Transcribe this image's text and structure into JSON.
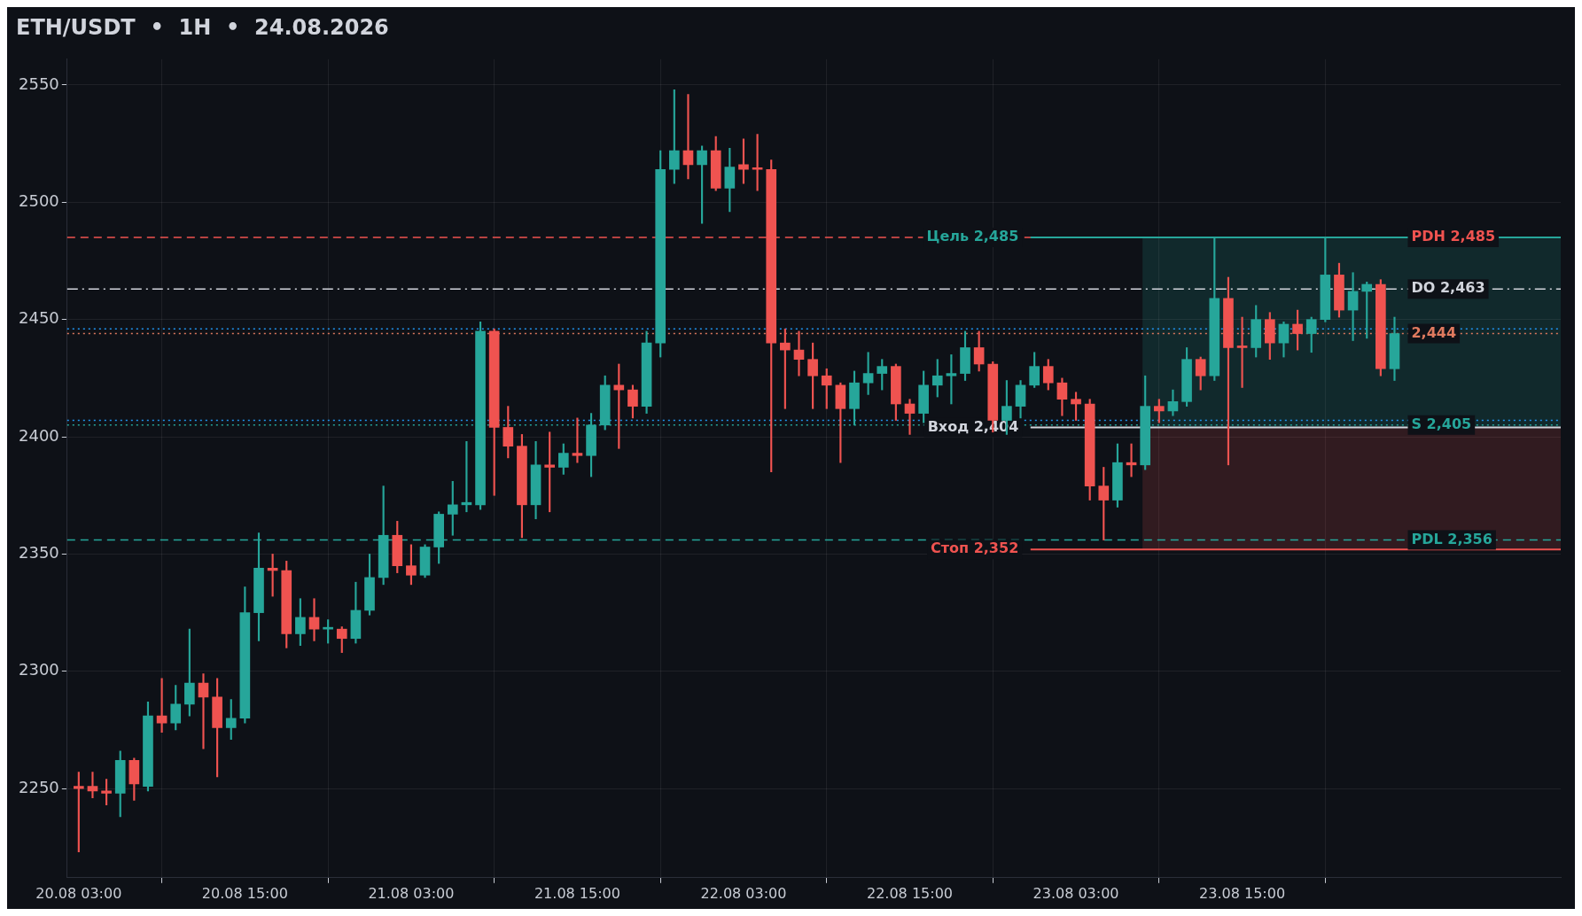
{
  "chart_data": {
    "type": "candlestick",
    "title": "ETH/USDT  •  1H  •  24.08.2026",
    "x": [
      "2026-08-20T03:00",
      "2026-08-20T04:00",
      "2026-08-20T05:00",
      "2026-08-20T06:00",
      "2026-08-20T07:00",
      "2026-08-20T08:00",
      "2026-08-20T09:00",
      "2026-08-20T10:00",
      "2026-08-20T11:00",
      "2026-08-20T12:00",
      "2026-08-20T13:00",
      "2026-08-20T14:00",
      "2026-08-20T15:00",
      "2026-08-20T16:00",
      "2026-08-20T17:00",
      "2026-08-20T18:00",
      "2026-08-20T19:00",
      "2026-08-20T20:00",
      "2026-08-20T21:00",
      "2026-08-20T22:00",
      "2026-08-20T23:00",
      "2026-08-21T00:00",
      "2026-08-21T01:00",
      "2026-08-21T02:00",
      "2026-08-21T03:00",
      "2026-08-21T04:00",
      "2026-08-21T05:00",
      "2026-08-21T06:00",
      "2026-08-21T07:00",
      "2026-08-21T08:00",
      "2026-08-21T09:00",
      "2026-08-21T10:00",
      "2026-08-21T11:00",
      "2026-08-21T12:00",
      "2026-08-21T13:00",
      "2026-08-21T14:00",
      "2026-08-21T15:00",
      "2026-08-21T16:00",
      "2026-08-21T17:00",
      "2026-08-21T18:00",
      "2026-08-21T19:00",
      "2026-08-21T20:00",
      "2026-08-21T21:00",
      "2026-08-21T22:00",
      "2026-08-21T23:00",
      "2026-08-22T00:00",
      "2026-08-22T01:00",
      "2026-08-22T02:00",
      "2026-08-22T03:00",
      "2026-08-22T04:00",
      "2026-08-22T05:00",
      "2026-08-22T06:00",
      "2026-08-22T07:00",
      "2026-08-22T08:00",
      "2026-08-22T09:00",
      "2026-08-22T10:00",
      "2026-08-22T11:00",
      "2026-08-22T12:00",
      "2026-08-22T13:00",
      "2026-08-22T14:00",
      "2026-08-22T15:00",
      "2026-08-22T16:00",
      "2026-08-22T17:00",
      "2026-08-22T18:00",
      "2026-08-22T19:00",
      "2026-08-22T20:00",
      "2026-08-22T21:00",
      "2026-08-22T22:00",
      "2026-08-22T23:00",
      "2026-08-23T00:00",
      "2026-08-23T01:00",
      "2026-08-23T02:00",
      "2026-08-23T03:00",
      "2026-08-23T04:00",
      "2026-08-23T05:00",
      "2026-08-23T06:00",
      "2026-08-23T07:00",
      "2026-08-23T08:00",
      "2026-08-23T09:00",
      "2026-08-23T10:00",
      "2026-08-23T11:00",
      "2026-08-23T12:00",
      "2026-08-23T13:00",
      "2026-08-23T14:00",
      "2026-08-23T15:00",
      "2026-08-23T16:00",
      "2026-08-23T17:00",
      "2026-08-23T18:00",
      "2026-08-23T19:00",
      "2026-08-23T20:00",
      "2026-08-23T21:00",
      "2026-08-23T22:00",
      "2026-08-23T23:00",
      "2026-08-24T00:00",
      "2026-08-24T01:00",
      "2026-08-24T02:00"
    ],
    "ohlc": [
      [
        2251,
        2257,
        2223,
        2250
      ],
      [
        2251,
        2257,
        2246,
        2249
      ],
      [
        2249,
        2254,
        2243,
        2248
      ],
      [
        2248,
        2266,
        2238,
        2262
      ],
      [
        2262,
        2263,
        2245,
        2252
      ],
      [
        2251,
        2287,
        2249,
        2281
      ],
      [
        2281,
        2297,
        2274,
        2278
      ],
      [
        2278,
        2294,
        2275,
        2286
      ],
      [
        2286,
        2318,
        2281,
        2295
      ],
      [
        2295,
        2299,
        2267,
        2289
      ],
      [
        2289,
        2297,
        2255,
        2276
      ],
      [
        2276,
        2288,
        2271,
        2280
      ],
      [
        2280,
        2336,
        2278,
        2325
      ],
      [
        2325,
        2359,
        2313,
        2344
      ],
      [
        2344,
        2350,
        2332,
        2343
      ],
      [
        2343,
        2347,
        2310,
        2316
      ],
      [
        2316,
        2331,
        2311,
        2323
      ],
      [
        2323,
        2331,
        2313,
        2318
      ],
      [
        2318,
        2322,
        2312,
        2318
      ],
      [
        2318,
        2319,
        2308,
        2314
      ],
      [
        2314,
        2338,
        2312,
        2326
      ],
      [
        2326,
        2350,
        2324,
        2340
      ],
      [
        2340,
        2379,
        2337,
        2358
      ],
      [
        2358,
        2364,
        2342,
        2345
      ],
      [
        2345,
        2354,
        2337,
        2341
      ],
      [
        2341,
        2354,
        2340,
        2353
      ],
      [
        2353,
        2368,
        2346,
        2367
      ],
      [
        2367,
        2381,
        2358,
        2371
      ],
      [
        2371,
        2398,
        2368,
        2372
      ],
      [
        2371,
        2449,
        2369,
        2445
      ],
      [
        2445,
        2446,
        2375,
        2404
      ],
      [
        2404,
        2413,
        2391,
        2396
      ],
      [
        2396,
        2401,
        2357,
        2371
      ],
      [
        2371,
        2398,
        2365,
        2388
      ],
      [
        2388,
        2402,
        2368,
        2387
      ],
      [
        2387,
        2397,
        2384,
        2393
      ],
      [
        2393,
        2408,
        2389,
        2392
      ],
      [
        2392,
        2410,
        2383,
        2405
      ],
      [
        2405,
        2426,
        2403,
        2422
      ],
      [
        2422,
        2431,
        2395,
        2420
      ],
      [
        2420,
        2422,
        2408,
        2413
      ],
      [
        2413,
        2445,
        2410,
        2440
      ],
      [
        2440,
        2522,
        2434,
        2514
      ],
      [
        2514,
        2548,
        2508,
        2522
      ],
      [
        2522,
        2546,
        2510,
        2516
      ],
      [
        2516,
        2524,
        2491,
        2522
      ],
      [
        2522,
        2528,
        2505,
        2506
      ],
      [
        2506,
        2523,
        2496,
        2515
      ],
      [
        2516,
        2527,
        2508,
        2514
      ],
      [
        2514,
        2529,
        2505,
        2514
      ],
      [
        2514,
        2518,
        2385,
        2440
      ],
      [
        2440,
        2446,
        2412,
        2437
      ],
      [
        2437,
        2445,
        2426,
        2433
      ],
      [
        2433,
        2440,
        2412,
        2426
      ],
      [
        2426,
        2429,
        2412,
        2422
      ],
      [
        2422,
        2423,
        2389,
        2412
      ],
      [
        2412,
        2428,
        2405,
        2423
      ],
      [
        2423,
        2436,
        2418,
        2427
      ],
      [
        2427,
        2433,
        2420,
        2430
      ],
      [
        2430,
        2431,
        2407,
        2414
      ],
      [
        2414,
        2416,
        2401,
        2410
      ],
      [
        2410,
        2428,
        2406,
        2422
      ],
      [
        2422,
        2433,
        2417,
        2426
      ],
      [
        2426,
        2435,
        2414,
        2427
      ],
      [
        2427,
        2445,
        2424,
        2438
      ],
      [
        2438,
        2445,
        2428,
        2431
      ],
      [
        2431,
        2432,
        2402,
        2407
      ],
      [
        2407,
        2424,
        2401,
        2413
      ],
      [
        2413,
        2424,
        2408,
        2422
      ],
      [
        2422,
        2436,
        2421,
        2430
      ],
      [
        2430,
        2433,
        2420,
        2423
      ],
      [
        2423,
        2425,
        2409,
        2416
      ],
      [
        2416,
        2419,
        2407,
        2414
      ],
      [
        2414,
        2416,
        2373,
        2379
      ],
      [
        2379,
        2387,
        2356,
        2373
      ],
      [
        2373,
        2397,
        2370,
        2389
      ],
      [
        2389,
        2397,
        2383,
        2388
      ],
      [
        2388,
        2426,
        2386,
        2413
      ],
      [
        2413,
        2416,
        2406,
        2411
      ],
      [
        2411,
        2420,
        2409,
        2415
      ],
      [
        2415,
        2438,
        2413,
        2433
      ],
      [
        2433,
        2434,
        2420,
        2426
      ],
      [
        2426,
        2485,
        2424,
        2459
      ],
      [
        2459,
        2468,
        2388,
        2438
      ],
      [
        2438,
        2451,
        2421,
        2438
      ],
      [
        2438,
        2456,
        2434,
        2450
      ],
      [
        2450,
        2453,
        2433,
        2440
      ],
      [
        2440,
        2449,
        2434,
        2448
      ],
      [
        2448,
        2454,
        2437,
        2444
      ],
      [
        2444,
        2451,
        2436,
        2450
      ],
      [
        2450,
        2485,
        2449,
        2469
      ],
      [
        2469,
        2474,
        2451,
        2454
      ],
      [
        2454,
        2470,
        2441,
        2462
      ],
      [
        2462,
        2466,
        2442,
        2465
      ],
      [
        2465,
        2467,
        2426,
        2429
      ],
      [
        2429,
        2451,
        2424,
        2444
      ]
    ],
    "colors": [
      "#ef5350",
      "#ef5350",
      "#ef5350",
      "#26a69a",
      "#ef5350",
      "#26a69a",
      "#ef5350",
      "#26a69a",
      "#26a69a",
      "#ef5350",
      "#ef5350",
      "#26a69a",
      "#26a69a",
      "#26a69a",
      "#ef5350",
      "#ef5350",
      "#26a69a",
      "#ef5350",
      "#26a69a",
      "#ef5350",
      "#26a69a",
      "#26a69a",
      "#26a69a",
      "#ef5350",
      "#ef5350",
      "#26a69a",
      "#26a69a",
      "#26a69a",
      "#26a69a",
      "#26a69a",
      "#ef5350",
      "#ef5350",
      "#ef5350",
      "#26a69a",
      "#ef5350",
      "#26a69a",
      "#ef5350",
      "#26a69a",
      "#26a69a",
      "#ef5350",
      "#ef5350",
      "#26a69a",
      "#26a69a",
      "#26a69a",
      "#ef5350",
      "#26a69a",
      "#ef5350",
      "#26a69a",
      "#ef5350",
      "#ef5350",
      "#ef5350",
      "#ef5350",
      "#ef5350",
      "#ef5350",
      "#ef5350",
      "#ef5350",
      "#26a69a",
      "#26a69a",
      "#26a69a",
      "#ef5350",
      "#ef5350",
      "#26a69a",
      "#26a69a",
      "#26a69a",
      "#26a69a",
      "#ef5350",
      "#ef5350",
      "#26a69a",
      "#26a69a",
      "#26a69a",
      "#ef5350",
      "#ef5350",
      "#ef5350",
      "#ef5350",
      "#ef5350",
      "#26a69a",
      "#ef5350",
      "#26a69a",
      "#ef5350",
      "#26a69a",
      "#26a69a",
      "#ef5350",
      "#26a69a",
      "#ef5350",
      "#ef5350",
      "#26a69a",
      "#ef5350",
      "#26a69a",
      "#ef5350",
      "#26a69a",
      "#26a69a",
      "#ef5350",
      "#26a69a",
      "#26a69a",
      "#ef5350",
      "#26a69a"
    ],
    "xlim": [
      "2026-08-20T02:10",
      "2026-08-24T14:00"
    ],
    "xticks": [
      {
        "value": "2026-08-20T03:00",
        "label": "20.08 03:00"
      },
      {
        "value": "2026-08-20T15:00",
        "label": "20.08 15:00"
      },
      {
        "value": "2026-08-21T03:00",
        "label": "21.08 03:00"
      },
      {
        "value": "2026-08-21T15:00",
        "label": "21.08 15:00"
      },
      {
        "value": "2026-08-22T03:00",
        "label": "22.08 03:00"
      },
      {
        "value": "2026-08-22T15:00",
        "label": "22.08 15:00"
      },
      {
        "value": "2026-08-23T03:00",
        "label": "23.08 03:00"
      },
      {
        "value": "2026-08-23T15:00",
        "label": "23.08 15:00"
      }
    ],
    "ylim": [
      2212,
      2561
    ],
    "yticks": [
      2250,
      2300,
      2350,
      2400,
      2450,
      2500,
      2550
    ],
    "grid": true,
    "bands": [
      {
        "axis": "y",
        "from": 2404,
        "to": 2485,
        "color": "#26a69a"
      },
      {
        "axis": "y",
        "from": 2352,
        "to": 2404,
        "color": "#ef5350"
      }
    ],
    "ref_lines": [
      {
        "axis": "y",
        "value": 2485,
        "label": "PDH 2,485",
        "color": "#ef5350",
        "line_style": "dashed"
      },
      {
        "axis": "y",
        "value": 2485,
        "label": "Цель 2,485",
        "color": "#26a69a",
        "line_style": "solid"
      },
      {
        "axis": "y",
        "value": 2463,
        "label": "DO 2,463",
        "color": "#d1d4dc",
        "line_style": "dashdot"
      },
      {
        "axis": "y",
        "value": 2446,
        "color": "#2196f3",
        "line_style": "dotted"
      },
      {
        "axis": "y",
        "value": 2444,
        "label": "2,444",
        "color": "#e07a5f",
        "line_style": "dotted"
      },
      {
        "axis": "y",
        "value": 2407,
        "color": "#2196f3",
        "line_style": "dotted"
      },
      {
        "axis": "y",
        "value": 2405,
        "label": "S 2,405",
        "color": "#26a69a",
        "line_style": "dotted"
      },
      {
        "axis": "y",
        "value": 2404,
        "label": "Вход 2,404",
        "color": "#d1d4dc",
        "line_style": "solid"
      },
      {
        "axis": "y",
        "value": 2356,
        "label": "PDL 2,356",
        "color": "#26a69a",
        "line_style": "dashed"
      },
      {
        "axis": "y",
        "value": 2352,
        "label": "Стоп 2,352",
        "color": "#ef5350",
        "line_style": "solid"
      }
    ]
  }
}
